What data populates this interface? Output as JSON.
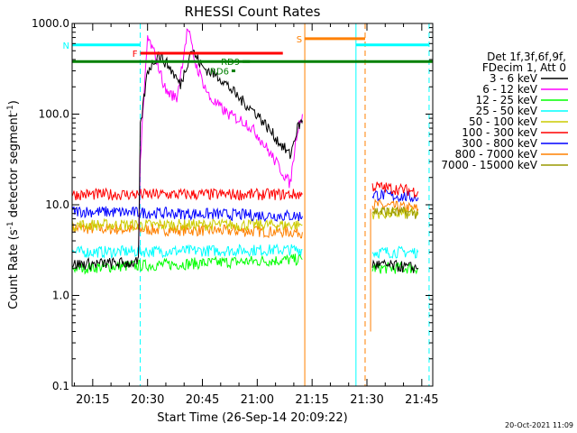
{
  "chart_data": {
    "type": "line",
    "title": "RHESSI Count Rates",
    "xlabel": "Start Time (26-Sep-14 20:09:22)",
    "ylabel_main": "Count Rate (s",
    "ylabel_sup1": "-1",
    "ylabel_mid": " detector segment",
    "ylabel_sup2": "-1",
    "ylabel_end": ")",
    "xlim": [
      "20:09:22",
      "21:48:00"
    ],
    "ylim": [
      0.1,
      1000
    ],
    "yscale": "log",
    "x_ticks": [
      "20:15",
      "20:30",
      "20:45",
      "21:00",
      "21:15",
      "21:30",
      "21:45"
    ],
    "y_ticks": [
      "0.1",
      "1.0",
      "10.0",
      "100.0",
      "1000.0"
    ],
    "legend_position": "right",
    "legend_header": [
      "Det 1f,3f,6f,9f,",
      "FDecim 1, Att 0"
    ],
    "timestamp": "20-Oct-2021 11:09",
    "series": [
      {
        "name": "3 - 6 keV",
        "color": "#000000",
        "points": [
          [
            "20:09:22",
            2.2
          ],
          [
            "20:27:30",
            2.3
          ],
          [
            "20:28:00",
            70
          ],
          [
            "20:30:00",
            300
          ],
          [
            "20:33:00",
            460
          ],
          [
            "20:36:00",
            330
          ],
          [
            "20:39:00",
            210
          ],
          [
            "20:42:00",
            520
          ],
          [
            "20:45:00",
            330
          ],
          [
            "20:50:00",
            250
          ],
          [
            "20:55:00",
            150
          ],
          [
            "21:00:00",
            100
          ],
          [
            "21:05:00",
            55
          ],
          [
            "21:09:00",
            35
          ],
          [
            "21:11:00",
            70
          ],
          [
            "21:12:20",
            85
          ]
        ],
        "second_segment": [
          [
            "21:31:30",
            2.2
          ],
          [
            "21:44:00",
            2.0
          ]
        ]
      },
      {
        "name": "6 - 12 keV",
        "color": "#ff00ff",
        "points": [
          [
            "20:27:30",
            2.4
          ],
          [
            "20:28:00",
            30
          ],
          [
            "20:30:00",
            700
          ],
          [
            "20:32:00",
            450
          ],
          [
            "20:35:00",
            180
          ],
          [
            "20:38:00",
            150
          ],
          [
            "20:41:00",
            900
          ],
          [
            "20:43:00",
            370
          ],
          [
            "20:47:00",
            150
          ],
          [
            "20:52:00",
            100
          ],
          [
            "20:57:00",
            80
          ],
          [
            "21:00:00",
            60
          ],
          [
            "21:05:00",
            30
          ],
          [
            "21:09:00",
            17
          ],
          [
            "21:11:00",
            70
          ],
          [
            "21:12:20",
            100
          ]
        ]
      },
      {
        "name": "12 - 25 keV",
        "color": "#00ff00",
        "points": [
          [
            "20:09:22",
            2.0
          ],
          [
            "21:12:20",
            2.5
          ]
        ],
        "second_segment": [
          [
            "21:31:30",
            2.0
          ],
          [
            "21:44:00",
            2.0
          ]
        ]
      },
      {
        "name": "25 - 50 keV",
        "color": "#00ffff",
        "points": [
          [
            "20:09:22",
            3.0
          ],
          [
            "21:12:20",
            3.2
          ]
        ],
        "second_segment": [
          [
            "21:31:30",
            3.0
          ],
          [
            "21:44:00",
            3.0
          ]
        ]
      },
      {
        "name": "50 - 100 keV",
        "color": "#cccc00",
        "points": [
          [
            "20:09:22",
            6.0
          ],
          [
            "21:12:20",
            6.0
          ]
        ],
        "second_segment": [
          [
            "21:31:30",
            8.0
          ],
          [
            "21:44:00",
            8.0
          ]
        ]
      },
      {
        "name": "100 - 300 keV",
        "color": "#ff0000",
        "points": [
          [
            "20:09:22",
            13
          ],
          [
            "21:12:20",
            13
          ]
        ],
        "second_segment": [
          [
            "21:31:30",
            16
          ],
          [
            "21:44:00",
            14
          ]
        ]
      },
      {
        "name": "300 - 800 keV",
        "color": "#0000ff",
        "points": [
          [
            "20:09:22",
            8.5
          ],
          [
            "21:12:20",
            7.5
          ]
        ],
        "second_segment": [
          [
            "21:31:30",
            13
          ],
          [
            "21:44:00",
            12
          ]
        ]
      },
      {
        "name": "800 - 7000 keV",
        "color": "#ff8000",
        "points": [
          [
            "20:09:22",
            5.5
          ],
          [
            "21:12:20",
            5.0
          ]
        ],
        "second_segment": [
          [
            "21:31:30",
            10
          ],
          [
            "21:44:00",
            9
          ]
        ]
      },
      {
        "name": "7000 - 15000 keV",
        "color": "#999900",
        "points": [],
        "second_segment": [
          [
            "21:31:30",
            8.5
          ],
          [
            "21:44:00",
            8.0
          ]
        ]
      }
    ],
    "flag_bars": [
      {
        "label": "N",
        "color": "#00ffff",
        "label_color": "#00ffff",
        "segments": [
          [
            "20:09:22",
            "20:28:00"
          ],
          [
            "21:27:00",
            "21:47:00"
          ]
        ],
        "y": 580
      },
      {
        "label": "F",
        "color": "#ff0000",
        "label_color": "#ff0000",
        "segments": [
          [
            "20:28:00",
            "21:07:00"
          ]
        ],
        "y": 470
      },
      {
        "label": "S",
        "color": "#ff8000",
        "label_color": "#ff8000",
        "segments": [
          [
            "21:13:00",
            "21:29:30"
          ]
        ],
        "y": 680
      },
      {
        "label": "RD9",
        "color": "#008000",
        "label_color": "#008000",
        "segments": [
          [
            "20:56:00",
            "20:58:00"
          ]
        ],
        "y": 380
      },
      {
        "label": "RD6",
        "color": "#008000",
        "label_color": "#008000",
        "segments": [
          [
            "20:53:00",
            "20:54:00"
          ]
        ],
        "y": 300
      }
    ],
    "green_line": {
      "color": "#008000",
      "y": 380
    },
    "vlines": [
      {
        "time": "20:09:22",
        "color": "#00ffff",
        "style": "solid"
      },
      {
        "time": "20:28:00",
        "color": "#00ffff",
        "style": "dashed"
      },
      {
        "time": "21:13:00",
        "color": "#ff8000",
        "style": "solid"
      },
      {
        "time": "21:27:00",
        "color": "#00ffff",
        "style": "solid"
      },
      {
        "time": "21:29:30",
        "color": "#ff8000",
        "style": "dashed"
      },
      {
        "time": "21:47:00",
        "color": "#00ffff",
        "style": "dashed"
      }
    ],
    "attenuator_spike": {
      "time": "21:31:00",
      "low": 0.4,
      "high": 9,
      "color": "#ff8000"
    }
  }
}
